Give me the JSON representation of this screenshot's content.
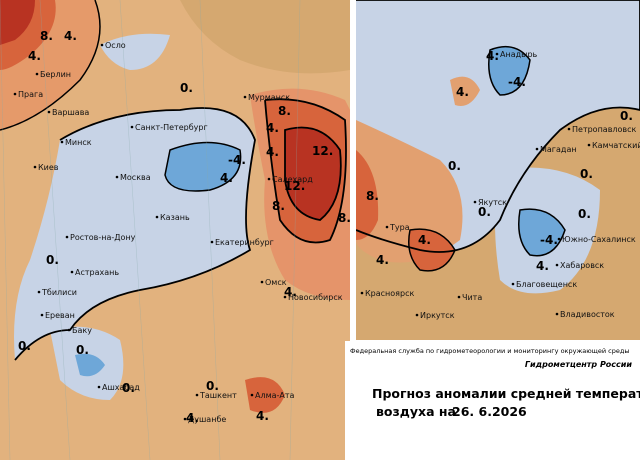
{
  "left_map": {
    "cities": [
      "Осло",
      "Берлин",
      "Прага",
      "Варшава",
      "Мурманск",
      "Санкт-Петербург",
      "Минск",
      "Киев",
      "Москва",
      "Салехард",
      "Казань",
      "Ростов-на-Дону",
      "Екатеринбург",
      "Астрахань",
      "Тбилиси",
      "Омск",
      "Новосибирск",
      "Ереван",
      "Баку",
      "Ашхабад",
      "Ташкент",
      "Алма-Ата",
      "Душанбе"
    ],
    "contour_labels": [
      "8.",
      "4.",
      "4.",
      "0.",
      "8.",
      "4.",
      "4.",
      "12.",
      "12.",
      "-4.",
      "4.",
      "8.",
      "8.",
      "0.",
      "4.",
      "0.",
      "0.",
      "0.",
      "0.",
      "4.",
      "4.",
      "4."
    ]
  },
  "right_map": {
    "cities": [
      "Анадырь",
      "Петропавловск",
      "Магадан",
      "Камчатский",
      "Якутск",
      "Тура",
      "Южно-Сахалинск",
      "Хабаровск",
      "Благовещенск",
      "Красноярск",
      "Чита",
      "Иркутск",
      "Владивосток"
    ],
    "contour_labels": [
      "4.",
      "-4.",
      "4.",
      "0.",
      "8.",
      "0.",
      "0.",
      "4.",
      "4.",
      "-4.",
      "4.",
      "0.",
      "0."
    ]
  },
  "caption": {
    "agency": "Федеральная служба по гидрометеорологии и мониторингу окружающей среды",
    "center": "Гидрометцентр России",
    "title_line1": "Прогноз аномалии средней температуры",
    "title_line2": "воздуха на",
    "date": "26. 6.2026"
  }
}
